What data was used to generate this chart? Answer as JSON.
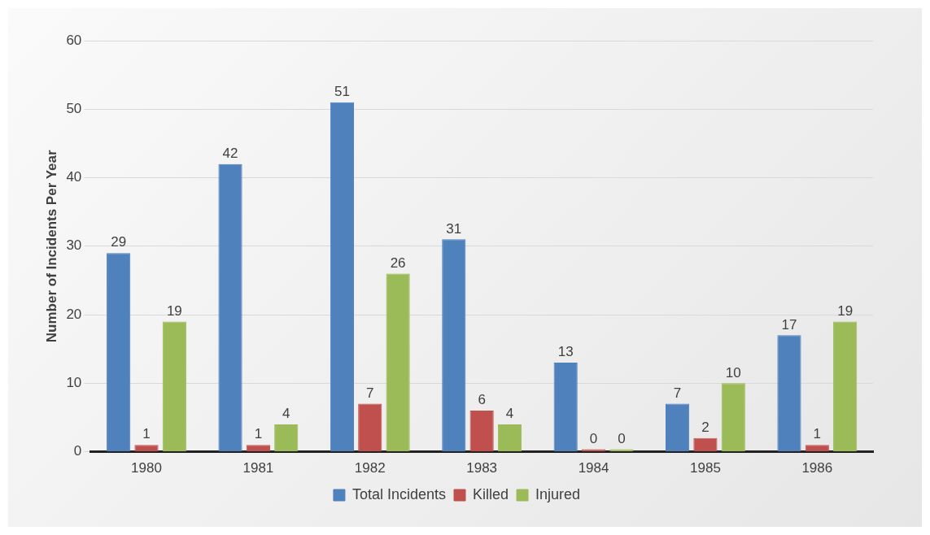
{
  "chart_data": {
    "type": "bar",
    "ylabel": "Number of Incidents Per Year",
    "categories": [
      "1980",
      "1981",
      "1982",
      "1983",
      "1984",
      "1985",
      "1986"
    ],
    "series": [
      {
        "name": "Total Incidents",
        "color": "#4f81bd",
        "values": [
          29,
          42,
          51,
          31,
          13,
          7,
          17
        ]
      },
      {
        "name": "Killed",
        "color": "#c0504d",
        "values": [
          1,
          1,
          7,
          6,
          0,
          2,
          1
        ]
      },
      {
        "name": "Injured",
        "color": "#9bbb59",
        "values": [
          19,
          4,
          26,
          4,
          0,
          10,
          19
        ]
      }
    ],
    "ylim": [
      0,
      60
    ],
    "yticks": [
      0,
      10,
      20,
      30,
      40,
      50,
      60
    ],
    "grid": "y",
    "legend": "bottom",
    "data_labels": true
  }
}
